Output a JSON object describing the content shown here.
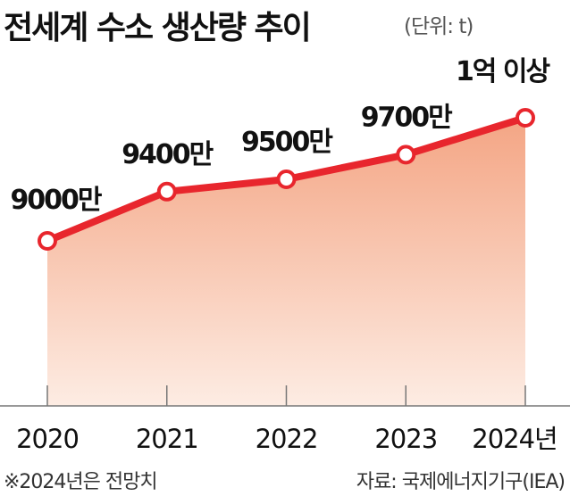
{
  "header": {
    "title": "전세계 수소 생산량 추이",
    "unit": "(단위: t)"
  },
  "chart_data": {
    "type": "area",
    "title": "전세계 수소 생산량 추이",
    "unit": "t",
    "categories": [
      "2020",
      "2021",
      "2022",
      "2023",
      "2024년"
    ],
    "values": [
      90000000,
      94000000,
      95000000,
      97000000,
      100000000
    ],
    "data_labels": [
      "9000만",
      "9400만",
      "9500만",
      "9700만",
      "1억 이상"
    ],
    "grid": false,
    "legend": "none",
    "line_color": "#e8262d",
    "fill_color_top": "#f4a584",
    "fill_color_bottom": "#fdece3"
  },
  "footer": {
    "note": "※2024년은 전망치",
    "source": "자료: 국제에너지기구(IEA)"
  }
}
